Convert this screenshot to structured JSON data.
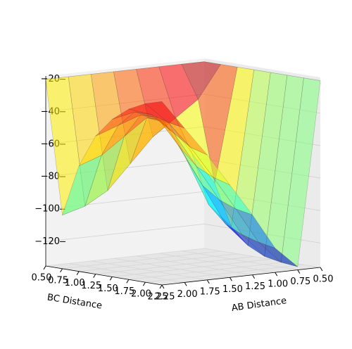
{
  "chart_data": {
    "type": "surface3d",
    "xlabel": "AB Distance",
    "ylabel": "BC Distance",
    "x": [
      0.5,
      0.75,
      1.0,
      1.25,
      1.5,
      1.75,
      2.0,
      2.25
    ],
    "y": [
      0.5,
      0.75,
      1.0,
      1.25,
      1.5,
      1.75,
      2.0,
      2.25
    ],
    "z": [
      [
        -20,
        -20,
        -20,
        -20,
        -20,
        -20,
        -20,
        -20
      ],
      [
        -20,
        -40,
        -90,
        -115,
        -125,
        -130,
        -132,
        -133
      ],
      [
        -20,
        -50,
        -70,
        -100,
        -110,
        -115,
        -118,
        -120
      ],
      [
        -20,
        -60,
        -50,
        -70,
        -85,
        -92,
        -96,
        -98
      ],
      [
        -20,
        -75,
        -45,
        -45,
        -60,
        -70,
        -75,
        -78
      ],
      [
        -20,
        -90,
        -55,
        -40,
        -40,
        -48,
        -55,
        -58
      ],
      [
        -20,
        -98,
        -65,
        -45,
        -35,
        -35,
        -38,
        -40
      ],
      [
        -20,
        -102,
        -70,
        -50,
        -38,
        -30,
        -25,
        -22
      ]
    ],
    "xlim": [
      0.5,
      2.25
    ],
    "ylim": [
      0.5,
      2.25
    ],
    "zlim": [
      -135,
      -18
    ],
    "xticks": [
      {
        "value": 0.5,
        "label": "0.50"
      },
      {
        "value": 0.75,
        "label": "0.75"
      },
      {
        "value": 1.0,
        "label": "1.00"
      },
      {
        "value": 1.25,
        "label": "1.25"
      },
      {
        "value": 1.5,
        "label": "1.50"
      },
      {
        "value": 1.75,
        "label": "1.75"
      },
      {
        "value": 2.0,
        "label": "2.00"
      },
      {
        "value": 2.25,
        "label": "2.25"
      }
    ],
    "yticks": [
      {
        "value": 0.5,
        "label": "0.50"
      },
      {
        "value": 0.75,
        "label": "0.75"
      },
      {
        "value": 1.0,
        "label": "1.00"
      },
      {
        "value": 1.25,
        "label": "1.25"
      },
      {
        "value": 1.5,
        "label": "1.50"
      },
      {
        "value": 1.75,
        "label": "1.75"
      },
      {
        "value": 2.0,
        "label": "2.00"
      },
      {
        "value": 2.25,
        "label": "2.25"
      }
    ],
    "zticks": [
      {
        "value": -120,
        "label": "−120"
      },
      {
        "value": -100,
        "label": "−100"
      },
      {
        "value": -80,
        "label": "−80"
      },
      {
        "value": -60,
        "label": "−60"
      },
      {
        "value": -40,
        "label": "−40"
      },
      {
        "value": -20,
        "label": "−20"
      }
    ],
    "colormap": "jet",
    "grid": true
  }
}
